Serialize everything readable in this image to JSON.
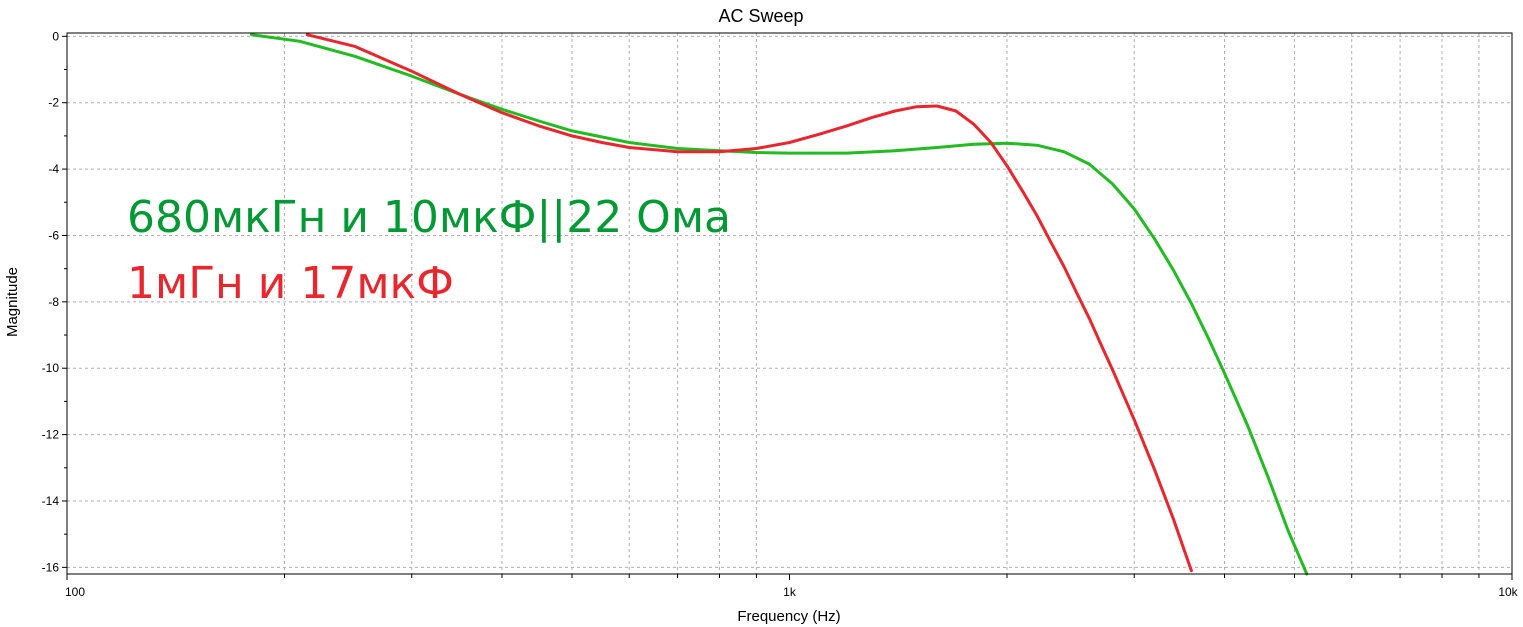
{
  "chart_data": {
    "type": "line",
    "title": "AC Sweep",
    "xlabel": "Frequency (Hz)",
    "ylabel": "Magnitude",
    "xscale": "log",
    "xlim": [
      100,
      10000
    ],
    "ylim": [
      -16.2,
      0.1
    ],
    "x_tick_labels": [
      {
        "value": 100,
        "label": "100"
      },
      {
        "value": 1000,
        "label": "1k"
      },
      {
        "value": 10000,
        "label": "10k"
      }
    ],
    "y_ticks": [
      0,
      -2,
      -4,
      -6,
      -8,
      -10,
      -12,
      -14,
      -16
    ],
    "grid": true,
    "annotations": [
      {
        "text": "680мкГн и 10мкФ||22 Ома",
        "color": "#009933"
      },
      {
        "text": "1мГн и 17мкФ",
        "color": "#e8262e"
      }
    ],
    "series": [
      {
        "name": "680мкГн и 10мкФ||22 Ома",
        "color": "#22bb22",
        "x": [
          180,
          210,
          250,
          300,
          350,
          400,
          450,
          500,
          600,
          700,
          800,
          900,
          1000,
          1200,
          1400,
          1600,
          1800,
          2000,
          2200,
          2400,
          2600,
          2800,
          3000,
          3200,
          3400,
          3600,
          3800,
          4000,
          4300,
          4600,
          4900,
          5200
        ],
        "y": [
          0.05,
          -0.15,
          -0.6,
          -1.2,
          -1.75,
          -2.2,
          -2.55,
          -2.85,
          -3.2,
          -3.38,
          -3.45,
          -3.5,
          -3.52,
          -3.52,
          -3.45,
          -3.35,
          -3.25,
          -3.22,
          -3.28,
          -3.48,
          -3.85,
          -4.45,
          -5.2,
          -6.1,
          -7.05,
          -8.05,
          -9.1,
          -10.15,
          -11.7,
          -13.3,
          -14.9,
          -16.2
        ]
      },
      {
        "name": "1мГн и 17мкФ",
        "color": "#e8262e",
        "x": [
          215,
          250,
          300,
          350,
          400,
          450,
          500,
          550,
          600,
          700,
          800,
          900,
          1000,
          1100,
          1200,
          1300,
          1400,
          1500,
          1600,
          1700,
          1800,
          1900,
          2000,
          2100,
          2200,
          2300,
          2400,
          2500,
          2600,
          2700,
          2800,
          3000,
          3200,
          3400,
          3600
        ],
        "y": [
          0.05,
          -0.3,
          -1.05,
          -1.75,
          -2.3,
          -2.7,
          -3.0,
          -3.2,
          -3.35,
          -3.48,
          -3.48,
          -3.38,
          -3.2,
          -2.95,
          -2.7,
          -2.45,
          -2.25,
          -2.12,
          -2.1,
          -2.25,
          -2.65,
          -3.2,
          -3.9,
          -4.65,
          -5.4,
          -6.2,
          -6.95,
          -7.75,
          -8.5,
          -9.3,
          -10.05,
          -11.55,
          -13.05,
          -14.55,
          -16.1
        ]
      }
    ]
  }
}
